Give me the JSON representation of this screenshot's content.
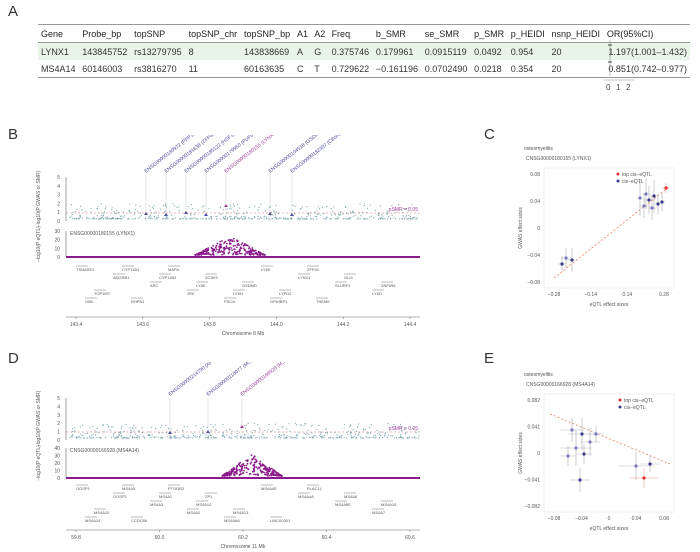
{
  "panels": {
    "a": "A",
    "b": "B",
    "c": "C",
    "d": "D",
    "e": "E"
  },
  "table": {
    "headers": [
      "Gene",
      "Probe_bp",
      "topSNP",
      "topSNP_chr",
      "topSNP_bp",
      "A1",
      "A2",
      "Freq",
      "b_SMR",
      "se_SMR",
      "p_SMR",
      "p_HEIDI",
      "nsnp_HEIDI",
      "OR(95%CI)"
    ],
    "rows": [
      [
        "LYNX1",
        "143845752",
        "rs13279795",
        "8",
        "143838669",
        "A",
        "G",
        "0.375746",
        "0.179961",
        "0.0915119",
        "0.0492",
        "0.954",
        "20",
        "1.197(1.001–1.432)"
      ],
      [
        "MS4A14",
        "60146003",
        "rs3816270",
        "11",
        "60163635",
        "C",
        "T",
        "0.729622",
        "−0.161196",
        "0.0702490",
        "0.0218",
        "0.354",
        "20",
        "0.851(0.742–0.977)"
      ]
    ],
    "forest_ticks": [
      "0",
      "1",
      "2"
    ]
  },
  "panel_b": {
    "probes": [
      "ENSG00000180155 (LYNX1)",
      "ENSG00000160972 (PPP1R16A)",
      "ENSG00000181638 (ZFP41)",
      "ENSG00000185122 (HSF1)",
      "ENSG00000179950 (PUF60)",
      "ENSG00000104518 (GSDMD)",
      "ENSG00000182307 (C8orf33)"
    ],
    "smr_ylabel": "−log10(P GWAS or SMR)",
    "eqtl_ylabel": "−log10(P eQTL)",
    "smr_ticks": [
      "0",
      "1",
      "2",
      "3",
      "4",
      "5"
    ],
    "eqtl_ticks": [
      "0",
      "10",
      "20",
      "30"
    ],
    "threshold": "pSMR = 0.05",
    "eqtl_probe": "ENSG00000180155 (LYNX1)",
    "genes": [
      "TSNARE1",
      "ADGRB1",
      "ARC",
      "JRK",
      "PSCA",
      "LY6K",
      "LYNX1",
      "SLURP1",
      "LY6D",
      "GML",
      "CYP11B1",
      "CYP11B2",
      "LY6E",
      "LY6H",
      "GPIHBP1",
      "ZFP41",
      "GLI4",
      "ZNF696",
      "TOP1MT",
      "RHPN1",
      "MAFA",
      "ZC3H3",
      "GSDMD",
      "LYPD2",
      "THEM6"
    ],
    "xticks": [
      "143.4",
      "143.6",
      "143.8",
      "144.0",
      "144.2",
      "144.4"
    ],
    "xlabel": "Chromosome 8 Mb"
  },
  "panel_c": {
    "title": "osteomyelitis",
    "probe": "CNSG00000180155 (LYNX1)",
    "legend": [
      "top cis−eQTL",
      "cis−eQTL"
    ],
    "yticks": [
      "0.08",
      "0.04",
      "0",
      "−0.04",
      "−0.08"
    ],
    "xticks": [
      "−0.28",
      "−0.14",
      "0.14",
      "0.28"
    ],
    "xlabel": "eQTL effect sizes",
    "ylabel": "GWAS effect sizes"
  },
  "panel_d": {
    "probes": [
      "ENSG00000214790 (AP001257.1)",
      "ENSG00000110077 (MS4A6A)",
      "ENSG00000166928 (MS4A14)"
    ],
    "smr_ylabel": "−log10(P GWAS or SMR)",
    "eqtl_ylabel": "−log10(P eQTL)",
    "smr_ticks": [
      "0",
      "1",
      "2",
      "3",
      "4",
      "5"
    ],
    "eqtl_ticks": [
      "0",
      "10",
      "20",
      "30",
      "40"
    ],
    "threshold": "pSMR = 0.05",
    "eqtl_probe": "CNSG00000166928 (MS4A14)",
    "genes": [
      "OOSP1",
      "OOSP2",
      "MS4A3",
      "MS4A2",
      "MS4A6A",
      "MS4A4E",
      "MS4A4A",
      "MS4A6E",
      "MS4A7",
      "MS4A14",
      "MS4A5",
      "MS4A1",
      "MS4A12",
      "MS4A13",
      "LINC00301",
      "PLAC1L",
      "MS4A8",
      "MS4A15",
      "MS4A10",
      "CCDC86",
      "PTGDR2",
      "ZP1"
    ],
    "xticks": [
      "59.8",
      "60.0",
      "60.2",
      "60.4",
      "60.6"
    ],
    "xlabel": "Chromosome 11 Mb"
  },
  "panel_e": {
    "title": "osteomyelitis",
    "probe": "CNSG00000166928 (MS4A14)",
    "legend": [
      "top cis−eQTL",
      "cis−eQTL"
    ],
    "yticks": [
      "0.082",
      "0.041",
      "0",
      "−0.041",
      "−0.082"
    ],
    "xticks": [
      "−0.08",
      "−0.04",
      "0",
      "0.04",
      "0.08"
    ],
    "xlabel": "eQTL effect sizes",
    "ylabel": "GWAS effect sizes"
  },
  "colors": {
    "probe": "#4a4aa0",
    "highlight": "#a0409a",
    "top": "#e03030",
    "eqtl": "#8b1a8b",
    "snp": "#7fa8b0"
  }
}
